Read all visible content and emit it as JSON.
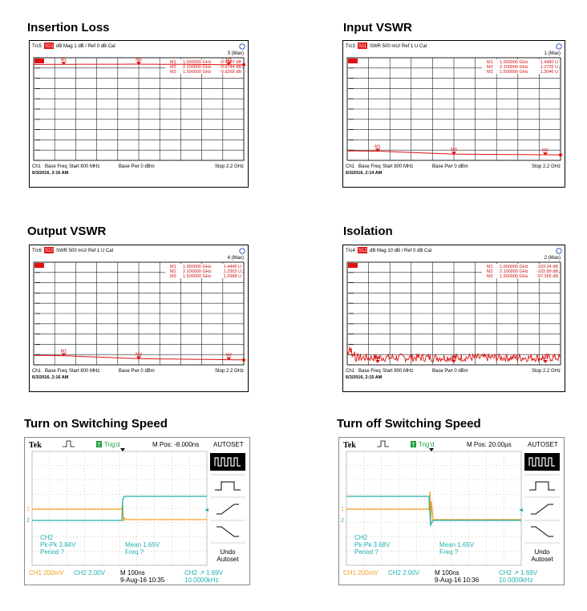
{
  "colors": {
    "trace_red": "#e01010",
    "grid": "#222222",
    "scope_ch1": "#f0a020",
    "scope_ch2": "#20b0b0",
    "scope_bg": "#ffffff"
  },
  "panels": [
    {
      "title": "Insertion Loss",
      "header": {
        "trace": "Trc5",
        "param": "S21",
        "format": "dB Mag",
        "scale": "1 dB /",
        "ref": "Ref 0 dB",
        "cal": "Cal",
        "chan_count": "3 (Max)"
      },
      "markers": [
        {
          "id": "M1",
          "freq": "1.000000 GHz",
          "val": "-0.6387 dB"
        },
        {
          "id": "M2",
          "freq": "2.100000 GHz",
          "val": "-0.6744 dB"
        },
        {
          "id": "M3",
          "freq": "1.500000 GHz",
          "val": "-0.6269 dB"
        }
      ],
      "footer": {
        "ch": "Ch1",
        "mode": "Base Freq",
        "start": "Start 800 MHz",
        "pwr": "Base Pwr 0 dBm",
        "stop": "Stop 2.2 GHz",
        "date": "6/3/2016, 2:16 AM"
      }
    },
    {
      "title": "Input VSWR",
      "header": {
        "trace": "Trc3",
        "param": "S11",
        "format": "SWR",
        "scale": "500 mU/",
        "ref": "Ref 1 U",
        "cal": "Cal",
        "chan_count": "1 (Max)"
      },
      "markers": [
        {
          "id": "M1",
          "freq": "1.000000 GHz",
          "val": "1.4480 U"
        },
        {
          "id": "M2",
          "freq": "2.100000 GHz",
          "val": "1.2725 U"
        },
        {
          "id": "M3",
          "freq": "1.500000 GHz",
          "val": "1.3046 U"
        }
      ],
      "footer": {
        "ch": "Ch1",
        "mode": "Base Freq",
        "start": "Start 800 MHz",
        "pwr": "Base Pwr 0 dBm",
        "stop": "Stop 2.2 GHz",
        "date": "6/3/2016, 2:14 AM"
      }
    },
    {
      "title": "Output VSWR",
      "header": {
        "trace": "Trc6",
        "param": "S22",
        "format": "SWR",
        "scale": "500 mU/",
        "ref": "Ref 1 U",
        "cal": "Cal",
        "chan_count": "4 (Max)"
      },
      "markers": [
        {
          "id": "M1",
          "freq": "1.000000 GHz",
          "val": "1.4449 U"
        },
        {
          "id": "M2",
          "freq": "2.100000 GHz",
          "val": "1.2503 U"
        },
        {
          "id": "M3",
          "freq": "1.500000 GHz",
          "val": "1.2998 U"
        }
      ],
      "footer": {
        "ch": "Ch1",
        "mode": "Base Freq",
        "start": "Start 800 MHz",
        "pwr": "Base Pwr 0 dBm",
        "stop": "Stop 2.2 GHz",
        "date": "6/3/2016, 2:16 AM"
      }
    },
    {
      "title": "Isolation",
      "header": {
        "trace": "Trc4",
        "param": "S12",
        "format": "dB Mag",
        "scale": "10 dB /",
        "ref": "Ref 0 dB",
        "cal": "Cal",
        "chan_count": "2 (Max)"
      },
      "markers": [
        {
          "id": "M1",
          "freq": "1.000000 GHz",
          "val": "-103.24 dB"
        },
        {
          "id": "M2",
          "freq": "2.100000 GHz",
          "val": "-102.89 dB"
        },
        {
          "id": "M3",
          "freq": "1.500000 GHz",
          "val": "-97.365 dB"
        }
      ],
      "footer": {
        "ch": "Ch1",
        "mode": "Base Freq",
        "start": "Start 800 MHz",
        "pwr": "Base Pwr 0 dBm",
        "stop": "Stop 2.2 GHz",
        "date": "6/3/2016, 2:15 AM"
      }
    },
    {
      "title": "Turn on Switching Speed",
      "scope": {
        "brand": "Tek",
        "trig": "Trig'd",
        "mpos": "M Pos: -8.000ns",
        "autoset": "AUTOSET",
        "ch2_label": "CH2",
        "pkpk": "Pk-Pk 3.84V",
        "period": "Period ?",
        "mean": "Mean 1.65V",
        "freq": "Freq ?",
        "undo": "Undo",
        "undo2": "Autoset",
        "ch1": "CH1 200mV",
        "ch2": "CH2 2.00V",
        "time": "M 100ns",
        "date": "9-Aug-16 10:35",
        "trig_src": "CH2",
        "trig_lvl": "1.69V",
        "trig_freq": "10.0000kHz"
      }
    },
    {
      "title": "Turn off Switching Speed",
      "scope": {
        "brand": "Tek",
        "trig": "Trig'd",
        "mpos": "M Pos: 20.00µs",
        "autoset": "AUTOSET",
        "ch2_label": "CH2",
        "pkpk": "Pk-Pk 3.68V",
        "period": "Period ?",
        "mean": "Mean 1.65V",
        "freq": "Freq ?",
        "undo": "Undo",
        "undo2": "Autoset",
        "ch1": "CH1 200mV",
        "ch2": "CH2 2.00V",
        "time": "M 100ns",
        "date": "9-Aug-16 10:36",
        "trig_src": "CH2",
        "trig_lvl": "1.69V",
        "trig_freq": "10.0000kHz"
      }
    }
  ],
  "chart_data": [
    {
      "type": "line",
      "title": "Insertion Loss",
      "xlabel": "",
      "ylabel": "",
      "x_unit": "GHz",
      "xlim": [
        0.8,
        2.2
      ],
      "ylim": [
        -10,
        0
      ],
      "y_unit": "dB",
      "series": [
        {
          "name": "Trc5 S21",
          "x": [
            0.8,
            1.0,
            1.5,
            2.1,
            2.2
          ],
          "y": [
            -0.66,
            -0.6387,
            -0.6269,
            -0.6744,
            -0.68
          ]
        }
      ],
      "markers": [
        {
          "id": "M1",
          "x": 1.0,
          "y": -0.6387
        },
        {
          "id": "M3",
          "x": 1.5,
          "y": -0.6269
        },
        {
          "id": "M2",
          "x": 2.1,
          "y": -0.6744
        }
      ]
    },
    {
      "type": "line",
      "title": "Input VSWR",
      "xlabel": "",
      "ylabel": "",
      "x_unit": "GHz",
      "xlim": [
        0.8,
        2.2
      ],
      "ylim": [
        1,
        6
      ],
      "y_unit": "U",
      "series": [
        {
          "name": "Trc3 S11",
          "x": [
            0.8,
            1.0,
            1.5,
            2.1,
            2.2
          ],
          "y": [
            1.46,
            1.448,
            1.3046,
            1.2725,
            1.27
          ]
        }
      ],
      "markers": [
        {
          "id": "M1",
          "x": 1.0,
          "y": 1.448
        },
        {
          "id": "M3",
          "x": 1.5,
          "y": 1.3046
        },
        {
          "id": "M2",
          "x": 2.1,
          "y": 1.2725
        }
      ]
    },
    {
      "type": "line",
      "title": "Output VSWR",
      "xlabel": "",
      "ylabel": "",
      "x_unit": "GHz",
      "xlim": [
        0.8,
        2.2
      ],
      "ylim": [
        1,
        6
      ],
      "y_unit": "U",
      "series": [
        {
          "name": "Trc6 S22",
          "x": [
            0.8,
            1.0,
            1.5,
            2.1,
            2.2
          ],
          "y": [
            1.46,
            1.4449,
            1.2998,
            1.2503,
            1.24
          ]
        }
      ],
      "markers": [
        {
          "id": "M1",
          "x": 1.0,
          "y": 1.4449
        },
        {
          "id": "M3",
          "x": 1.5,
          "y": 1.2998
        },
        {
          "id": "M2",
          "x": 2.1,
          "y": 1.2503
        }
      ]
    },
    {
      "type": "line",
      "title": "Isolation",
      "xlabel": "",
      "ylabel": "",
      "x_unit": "GHz",
      "xlim": [
        0.8,
        2.2
      ],
      "ylim": [
        -100,
        0
      ],
      "y_unit": "dB",
      "series": [
        {
          "name": "Trc4 S12",
          "noise_floor_db": -97,
          "x": [
            0.8,
            1.0,
            1.5,
            2.1,
            2.2
          ],
          "y": [
            -88,
            -103.24,
            -97.365,
            -102.89,
            -98
          ]
        }
      ],
      "markers": [
        {
          "id": "M1",
          "x": 1.0,
          "y": -103.24
        },
        {
          "id": "M3",
          "x": 1.5,
          "y": -97.365
        },
        {
          "id": "M2",
          "x": 2.1,
          "y": -102.89
        }
      ]
    }
  ]
}
